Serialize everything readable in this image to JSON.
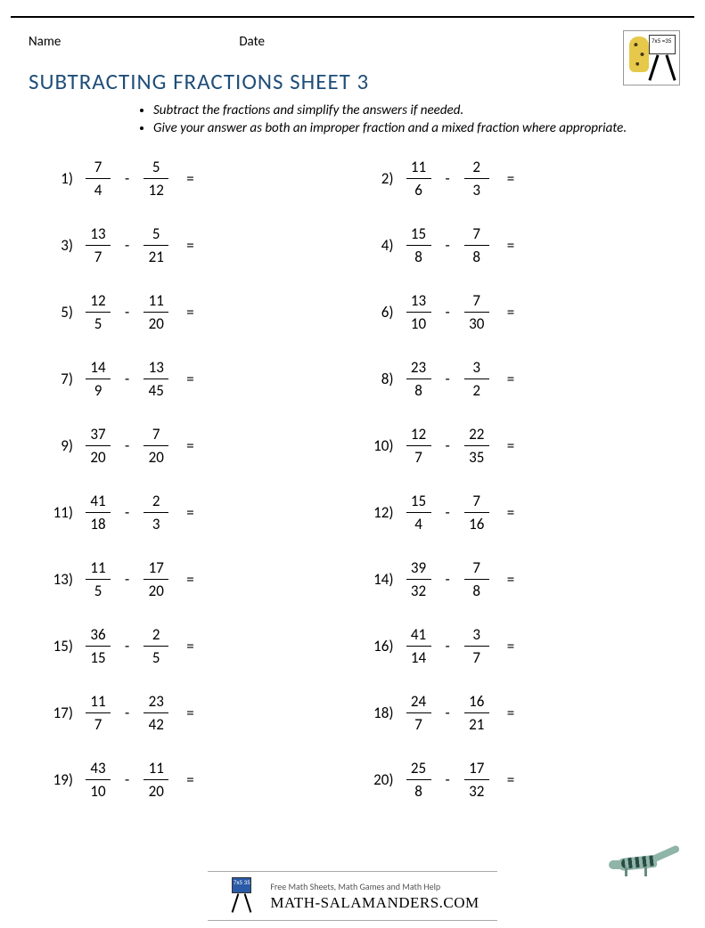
{
  "header": {
    "name_label": "Name",
    "date_label": "Date"
  },
  "title": "SUBTRACTING FRACTIONS SHEET 3",
  "instructions": [
    "Subtract the fractions and simplify the answers if needed.",
    "Give your answer as both an improper fraction and a mixed fraction where appropriate."
  ],
  "logo_board_text": "7x5 =35",
  "operator": "-",
  "equals": "=",
  "problems": [
    {
      "n": "1)",
      "a_num": "7",
      "a_den": "4",
      "b_num": "5",
      "b_den": "12"
    },
    {
      "n": "2)",
      "a_num": "11",
      "a_den": "6",
      "b_num": "2",
      "b_den": "3"
    },
    {
      "n": "3)",
      "a_num": "13",
      "a_den": "7",
      "b_num": "5",
      "b_den": "21"
    },
    {
      "n": "4)",
      "a_num": "15",
      "a_den": "8",
      "b_num": "7",
      "b_den": "8"
    },
    {
      "n": "5)",
      "a_num": "12",
      "a_den": "5",
      "b_num": "11",
      "b_den": "20"
    },
    {
      "n": "6)",
      "a_num": "13",
      "a_den": "10",
      "b_num": "7",
      "b_den": "30"
    },
    {
      "n": "7)",
      "a_num": "14",
      "a_den": "9",
      "b_num": "13",
      "b_den": "45"
    },
    {
      "n": "8)",
      "a_num": "23",
      "a_den": "8",
      "b_num": "3",
      "b_den": "2"
    },
    {
      "n": "9)",
      "a_num": "37",
      "a_den": "20",
      "b_num": "7",
      "b_den": "20"
    },
    {
      "n": "10)",
      "a_num": "12",
      "a_den": "7",
      "b_num": "22",
      "b_den": "35"
    },
    {
      "n": "11)",
      "a_num": "41",
      "a_den": "18",
      "b_num": "2",
      "b_den": "3"
    },
    {
      "n": "12)",
      "a_num": "15",
      "a_den": "4",
      "b_num": "7",
      "b_den": "16"
    },
    {
      "n": "13)",
      "a_num": "11",
      "a_den": "5",
      "b_num": "17",
      "b_den": "20"
    },
    {
      "n": "14)",
      "a_num": "39",
      "a_den": "32",
      "b_num": "7",
      "b_den": "8"
    },
    {
      "n": "15)",
      "a_num": "36",
      "a_den": "15",
      "b_num": "2",
      "b_den": "5"
    },
    {
      "n": "16)",
      "a_num": "41",
      "a_den": "14",
      "b_num": "3",
      "b_den": "7"
    },
    {
      "n": "17)",
      "a_num": "11",
      "a_den": "7",
      "b_num": "23",
      "b_den": "42"
    },
    {
      "n": "18)",
      "a_num": "24",
      "a_den": "7",
      "b_num": "16",
      "b_den": "21"
    },
    {
      "n": "19)",
      "a_num": "43",
      "a_den": "10",
      "b_num": "11",
      "b_den": "20"
    },
    {
      "n": "20)",
      "a_num": "25",
      "a_den": "8",
      "b_num": "17",
      "b_den": "32"
    }
  ],
  "footer": {
    "tagline": "Free Math Sheets, Math Games and Math Help",
    "site": "MATH-SALAMANDERS.COM",
    "logo_text": "7x5 35"
  }
}
